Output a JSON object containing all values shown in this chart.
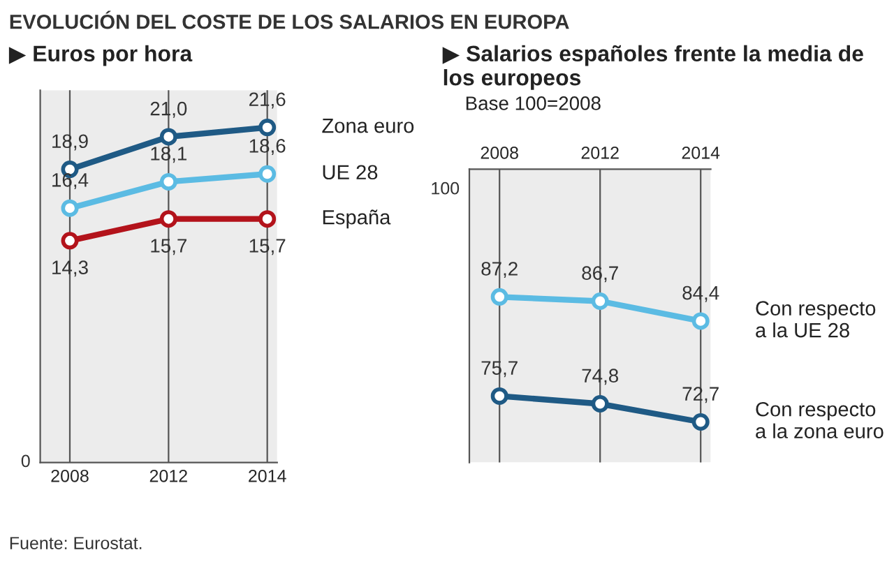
{
  "chart_data": [
    {
      "type": "line",
      "title": "EVOLUCIÓN DEL COSTE DE LOS SALARIOS EN EUROPA",
      "subtitle": "▶ Euros por hora",
      "categories": [
        "2008",
        "2012",
        "2014"
      ],
      "ylim": [
        0,
        24
      ],
      "grid": "x",
      "marker": "circle",
      "legend": false,
      "bands": [
        {
          "axis": "y",
          "from": 0,
          "to": 24,
          "color": "#ececec"
        }
      ],
      "series": [
        {
          "name": "Zona euro",
          "color": "#1f5a85",
          "values": [
            18.9,
            21.0,
            21.6
          ],
          "value_labels": [
            "18,9",
            "21,0",
            "21,6"
          ]
        },
        {
          "name": "UE 28",
          "color": "#5bbbe3",
          "values": [
            16.4,
            18.1,
            18.6
          ],
          "value_labels": [
            "16,4",
            "18,1",
            "18,6"
          ]
        },
        {
          "name": "España",
          "color": "#b3131b",
          "values": [
            14.3,
            15.7,
            15.7
          ],
          "value_labels": [
            "14,3",
            "15,7",
            "15,7"
          ]
        }
      ],
      "annotations": [
        "0",
        "Fuente: Eurostat."
      ]
    },
    {
      "type": "line",
      "title": "▶ Salarios españoles frente la media de los europeos",
      "subtitle": "Base 100=2008",
      "categories": [
        "2008",
        "2012",
        "2014"
      ],
      "ylim": [
        68,
        102
      ],
      "grid": "x",
      "marker": "circle",
      "legend": false,
      "bands": [
        {
          "axis": "y",
          "from": 68,
          "to": 102,
          "color": "#ececec"
        }
      ],
      "series": [
        {
          "name": "Con respecto a la UE 28",
          "color": "#5bbbe3",
          "values": [
            87.2,
            86.7,
            84.4
          ],
          "value_labels": [
            "87,2",
            "86,7",
            "84,4"
          ]
        },
        {
          "name": "Con respecto a la zona euro",
          "color": "#1f5a85",
          "values": [
            75.7,
            74.8,
            72.7
          ],
          "value_labels": [
            "75,7",
            "74,8",
            "72,7"
          ]
        }
      ],
      "annotations": [
        "100"
      ]
    }
  ]
}
